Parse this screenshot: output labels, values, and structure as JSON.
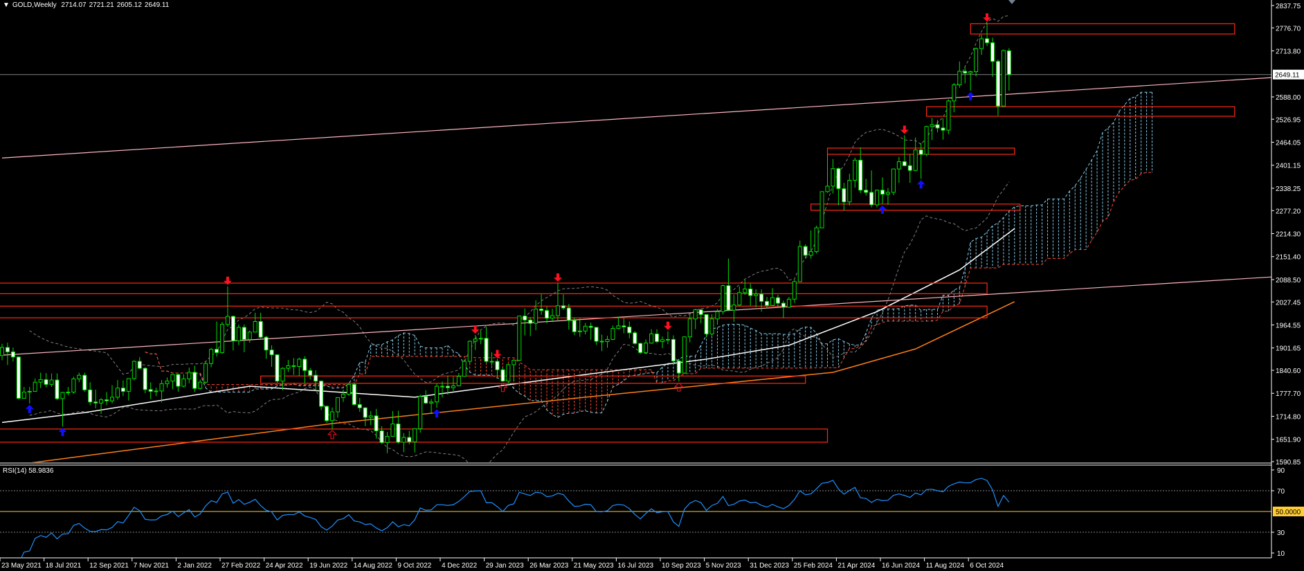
{
  "header": {
    "triangle_icon": "menu-triangle-down",
    "symbol_label": "GOLD,Weekly",
    "open": "2714.07",
    "high": "2721.21",
    "low": "2605.12",
    "close": "2649.11"
  },
  "price_axis": {
    "ticks": [
      "2837.75",
      "2776.70",
      "2713.80",
      "2588.00",
      "2526.95",
      "2464.05",
      "2401.15",
      "2338.25",
      "2277.20",
      "2214.30",
      "2151.40",
      "2088.50",
      "2027.45",
      "1964.55",
      "1901.65",
      "1840.60",
      "1777.70",
      "1714.80",
      "1651.90",
      "1590.85"
    ],
    "current_price": "2649.11"
  },
  "rsi_panel": {
    "label": "RSI(14) 58.9836",
    "ticks": [
      "90",
      "70",
      "30",
      "10"
    ],
    "level_label": "50.0000",
    "levels": [
      70,
      50,
      30
    ]
  },
  "time_axis": {
    "labels": [
      "23 May 2021",
      "18 Jul 2021",
      "12 Sep 2021",
      "7 Nov 2021",
      "2 Jan 2022",
      "27 Feb 2022",
      "24 Apr 2022",
      "19 Jun 2022",
      "14 Aug 2022",
      "9 Oct 2022",
      "4 Dec 2022",
      "29 Jan 2023",
      "26 Mar 2023",
      "21 May 2023",
      "16 Jul 2023",
      "10 Sep 2023",
      "5 Nov 2023",
      "31 Dec 2023",
      "25 Feb 2024",
      "21 Apr 2024",
      "16 Jun 2024",
      "11 Aug 2024",
      "6 Oct 2024"
    ],
    "label_every_bars": 8
  },
  "colors": {
    "background": "#000000",
    "candle_outline": "#00e000",
    "bear_fill": "#ffffff",
    "bull_fill": "#000000",
    "zone": "#ff2a12",
    "trendline": "#ffb6c1",
    "ma_fast": "#ffffff",
    "ma_slow": "#ff7f1a",
    "bollinger": "#808080",
    "cloud_bull": "#87ceeb",
    "cloud_bear": "#ff4a30",
    "rsi_line": "#1e90ff",
    "rsi_mid": "#ffcc33",
    "arrow_up": "#1010ff",
    "arrow_down": "#ff1020",
    "current_price_line": "#808080"
  },
  "chart_data": {
    "type": "candlestick",
    "symbol": "GOLD",
    "timeframe": "Weekly",
    "first_bar": "23 May 2021",
    "ylim": [
      1590.85,
      2837.75
    ],
    "candles": [
      [
        1881,
        1913,
        1868,
        1903
      ],
      [
        1903,
        1916,
        1855,
        1891
      ],
      [
        1891,
        1903,
        1865,
        1877
      ],
      [
        1877,
        1879,
        1761,
        1764
      ],
      [
        1764,
        1795,
        1771,
        1781
      ],
      [
        1781,
        1795,
        1750,
        1783
      ],
      [
        1783,
        1818,
        1784,
        1808
      ],
      [
        1808,
        1834,
        1792,
        1815
      ],
      [
        1815,
        1833,
        1794,
        1802
      ],
      [
        1802,
        1832,
        1795,
        1814
      ],
      [
        1814,
        1832,
        1759,
        1763
      ],
      [
        1763,
        1782,
        1687,
        1780
      ],
      [
        1780,
        1795,
        1772,
        1781
      ],
      [
        1781,
        1823,
        1776,
        1817
      ],
      [
        1817,
        1834,
        1808,
        1827
      ],
      [
        1827,
        1834,
        1782,
        1787
      ],
      [
        1787,
        1808,
        1745,
        1754
      ],
      [
        1754,
        1788,
        1737,
        1751
      ],
      [
        1751,
        1765,
        1721,
        1760
      ],
      [
        1760,
        1781,
        1746,
        1757
      ],
      [
        1757,
        1800,
        1750,
        1767
      ],
      [
        1767,
        1814,
        1760,
        1792
      ],
      [
        1792,
        1813,
        1770,
        1783
      ],
      [
        1783,
        1818,
        1758,
        1818
      ],
      [
        1818,
        1868,
        1813,
        1865
      ],
      [
        1865,
        1877,
        1844,
        1846
      ],
      [
        1846,
        1849,
        1778,
        1788
      ],
      [
        1788,
        1808,
        1762,
        1783
      ],
      [
        1783,
        1793,
        1770,
        1784
      ],
      [
        1784,
        1814,
        1753,
        1804
      ],
      [
        1804,
        1821,
        1793,
        1811
      ],
      [
        1811,
        1829,
        1789,
        1829
      ],
      [
        1829,
        1831,
        1782,
        1797
      ],
      [
        1797,
        1830,
        1794,
        1817
      ],
      [
        1817,
        1848,
        1805,
        1835
      ],
      [
        1835,
        1853,
        1781,
        1791
      ],
      [
        1791,
        1815,
        1788,
        1808
      ],
      [
        1808,
        1865,
        1806,
        1859
      ],
      [
        1859,
        1902,
        1849,
        1898
      ],
      [
        1898,
        1974,
        1878,
        1889
      ],
      [
        1889,
        1973,
        1886,
        1966
      ],
      [
        1966,
        2070,
        1959,
        1988
      ],
      [
        1988,
        1990,
        1895,
        1921
      ],
      [
        1921,
        1966,
        1910,
        1958
      ],
      [
        1958,
        1966,
        1890,
        1925
      ],
      [
        1925,
        1949,
        1916,
        1945
      ],
      [
        1945,
        1998,
        1944,
        1974
      ],
      [
        1974,
        1998,
        1928,
        1931
      ],
      [
        1931,
        1935,
        1872,
        1896
      ],
      [
        1896,
        1909,
        1850,
        1883
      ],
      [
        1883,
        1884,
        1807,
        1811
      ],
      [
        1811,
        1849,
        1786,
        1846
      ],
      [
        1846,
        1869,
        1836,
        1853
      ],
      [
        1853,
        1874,
        1828,
        1851
      ],
      [
        1851,
        1875,
        1825,
        1871
      ],
      [
        1871,
        1879,
        1805,
        1840
      ],
      [
        1840,
        1847,
        1816,
        1827
      ],
      [
        1827,
        1841,
        1785,
        1811
      ],
      [
        1811,
        1813,
        1732,
        1742
      ],
      [
        1742,
        1745,
        1697,
        1703
      ],
      [
        1703,
        1739,
        1680,
        1727
      ],
      [
        1727,
        1767,
        1711,
        1766
      ],
      [
        1766,
        1788,
        1754,
        1775
      ],
      [
        1775,
        1802,
        1771,
        1802
      ],
      [
        1802,
        1804,
        1745,
        1747
      ],
      [
        1747,
        1765,
        1727,
        1738
      ],
      [
        1738,
        1740,
        1688,
        1712
      ],
      [
        1712,
        1729,
        1691,
        1716
      ],
      [
        1716,
        1735,
        1654,
        1675
      ],
      [
        1675,
        1688,
        1639,
        1643
      ],
      [
        1643,
        1672,
        1614,
        1660
      ],
      [
        1660,
        1729,
        1659,
        1694
      ],
      [
        1694,
        1730,
        1640,
        1644
      ],
      [
        1644,
        1669,
        1617,
        1657
      ],
      [
        1657,
        1675,
        1638,
        1645
      ],
      [
        1645,
        1682,
        1616,
        1681
      ],
      [
        1681,
        1774,
        1670,
        1769
      ],
      [
        1769,
        1786,
        1748,
        1751
      ],
      [
        1751,
        1762,
        1721,
        1754
      ],
      [
        1754,
        1804,
        1738,
        1797
      ],
      [
        1797,
        1810,
        1766,
        1797
      ],
      [
        1797,
        1825,
        1774,
        1793
      ],
      [
        1793,
        1823,
        1784,
        1798
      ],
      [
        1798,
        1833,
        1797,
        1824
      ],
      [
        1824,
        1870,
        1824,
        1865
      ],
      [
        1865,
        1922,
        1858,
        1920
      ],
      [
        1920,
        1937,
        1896,
        1926
      ],
      [
        1926,
        1949,
        1912,
        1928
      ],
      [
        1928,
        1959,
        1861,
        1865
      ],
      [
        1865,
        1890,
        1853,
        1865
      ],
      [
        1865,
        1870,
        1819,
        1842
      ],
      [
        1842,
        1849,
        1809,
        1811
      ],
      [
        1811,
        1858,
        1804,
        1856
      ],
      [
        1856,
        1868,
        1810,
        1868
      ],
      [
        1868,
        1990,
        1866,
        1989
      ],
      [
        1989,
        2010,
        1936,
        1978
      ],
      [
        1978,
        1986,
        1934,
        1969
      ],
      [
        1969,
        2032,
        1950,
        2008
      ],
      [
        2008,
        2049,
        1992,
        2004
      ],
      [
        2004,
        2015,
        1969,
        1983
      ],
      [
        1983,
        2009,
        1975,
        1990
      ],
      [
        1990,
        2079,
        1975,
        2017
      ],
      [
        2017,
        2048,
        2006,
        2011
      ],
      [
        2011,
        2022,
        1952,
        1977
      ],
      [
        1977,
        1985,
        1937,
        1946
      ],
      [
        1946,
        1983,
        1932,
        1948
      ],
      [
        1948,
        1970,
        1939,
        1961
      ],
      [
        1961,
        1971,
        1924,
        1958
      ],
      [
        1958,
        1959,
        1910,
        1920
      ],
      [
        1920,
        1938,
        1893,
        1919
      ],
      [
        1919,
        1935,
        1902,
        1925
      ],
      [
        1925,
        1963,
        1923,
        1955
      ],
      [
        1955,
        1987,
        1953,
        1962
      ],
      [
        1962,
        1983,
        1942,
        1959
      ],
      [
        1959,
        1974,
        1928,
        1943
      ],
      [
        1943,
        1948,
        1911,
        1914
      ],
      [
        1914,
        1916,
        1885,
        1889
      ],
      [
        1889,
        1925,
        1887,
        1915
      ],
      [
        1915,
        1953,
        1913,
        1940
      ],
      [
        1940,
        1953,
        1915,
        1919
      ],
      [
        1919,
        1933,
        1901,
        1924
      ],
      [
        1924,
        1947,
        1912,
        1925
      ],
      [
        1925,
        1936,
        1857,
        1866
      ],
      [
        1866,
        1871,
        1810,
        1833
      ],
      [
        1833,
        1933,
        1832,
        1932
      ],
      [
        1932,
        1997,
        1917,
        1981
      ],
      [
        1981,
        2009,
        1953,
        2006
      ],
      [
        2006,
        2009,
        1969,
        1993
      ],
      [
        1993,
        1993,
        1931,
        1940
      ],
      [
        1940,
        1994,
        1935,
        1981
      ],
      [
        1981,
        2008,
        1965,
        2001
      ],
      [
        2001,
        2075,
        1993,
        2072
      ],
      [
        2072,
        2146,
        2009,
        2005
      ],
      [
        2005,
        2047,
        1973,
        2019
      ],
      [
        2019,
        2070,
        2016,
        2053
      ],
      [
        2053,
        2088,
        2047,
        2063
      ],
      [
        2063,
        2078,
        2017,
        2045
      ],
      [
        2045,
        2062,
        2013,
        2049
      ],
      [
        2049,
        2062,
        2001,
        2029
      ],
      [
        2029,
        2041,
        2010,
        2018
      ],
      [
        2018,
        2065,
        2017,
        2039
      ],
      [
        2039,
        2047,
        2014,
        2024
      ],
      [
        2024,
        2031,
        1984,
        2013
      ],
      [
        2013,
        2041,
        2011,
        2035
      ],
      [
        2035,
        2088,
        2025,
        2083
      ],
      [
        2083,
        2195,
        2083,
        2179
      ],
      [
        2179,
        2185,
        2146,
        2155
      ],
      [
        2155,
        2223,
        2146,
        2165
      ],
      [
        2165,
        2236,
        2160,
        2230
      ],
      [
        2230,
        2330,
        2229,
        2329
      ],
      [
        2329,
        2431,
        2326,
        2344
      ],
      [
        2344,
        2418,
        2324,
        2392
      ],
      [
        2392,
        2395,
        2291,
        2337
      ],
      [
        2337,
        2353,
        2277,
        2301
      ],
      [
        2301,
        2378,
        2291,
        2360
      ],
      [
        2360,
        2422,
        2340,
        2415
      ],
      [
        2415,
        2450,
        2325,
        2333
      ],
      [
        2333,
        2364,
        2318,
        2327
      ],
      [
        2327,
        2387,
        2286,
        2293
      ],
      [
        2293,
        2335,
        2286,
        2333
      ],
      [
        2333,
        2368,
        2295,
        2322
      ],
      [
        2322,
        2339,
        2293,
        2327
      ],
      [
        2327,
        2392,
        2319,
        2391
      ],
      [
        2391,
        2424,
        2353,
        2411
      ],
      [
        2411,
        2483,
        2398,
        2400
      ],
      [
        2400,
        2432,
        2353,
        2387
      ],
      [
        2387,
        2477,
        2385,
        2443
      ],
      [
        2443,
        2462,
        2364,
        2431
      ],
      [
        2431,
        2509,
        2426,
        2507
      ],
      [
        2507,
        2531,
        2470,
        2512
      ],
      [
        2512,
        2525,
        2491,
        2503
      ],
      [
        2503,
        2529,
        2471,
        2497
      ],
      [
        2497,
        2581,
        2486,
        2577
      ],
      [
        2577,
        2626,
        2546,
        2621
      ],
      [
        2621,
        2685,
        2613,
        2658
      ],
      [
        2658,
        2670,
        2625,
        2653
      ],
      [
        2653,
        2660,
        2605,
        2657
      ],
      [
        2657,
        2723,
        2644,
        2720
      ],
      [
        2720,
        2758,
        2703,
        2747
      ],
      [
        2747,
        2790,
        2727,
        2736
      ],
      [
        2736,
        2750,
        2643,
        2685
      ],
      [
        2685,
        2690,
        2537,
        2563
      ],
      [
        2563,
        2717,
        2562,
        2715
      ],
      [
        2714.07,
        2721.21,
        2605.12,
        2649.11
      ]
    ],
    "zones": [
      {
        "from_bar": 176,
        "to_bar": 224,
        "top": 2788,
        "bottom": 2760
      },
      {
        "from_bar": 168,
        "to_bar": 224,
        "top": 2561,
        "bottom": 2535
      },
      {
        "from_bar": 150,
        "to_bar": 184,
        "top": 2448,
        "bottom": 2431
      },
      {
        "from_bar": 147,
        "to_bar": 185,
        "top": 2295,
        "bottom": 2278
      },
      {
        "from_bar": -1,
        "to_bar": 179,
        "top": 2079,
        "bottom": 2050
      },
      {
        "from_bar": -1,
        "to_bar": 179,
        "top": 2016,
        "bottom": 1984
      },
      {
        "from_bar": 47,
        "to_bar": 146,
        "top": 1825,
        "bottom": 1805
      },
      {
        "from_bar": -1,
        "to_bar": 150,
        "top": 1680,
        "bottom": 1644
      }
    ],
    "trendlines": [
      {
        "from": [
          0,
          2421
        ],
        "to": [
          231,
          2641
        ]
      },
      {
        "from": [
          0,
          1882
        ],
        "to": [
          231,
          2096
        ]
      }
    ],
    "ma_fast": [
      [
        0,
        1698
      ],
      [
        15,
        1725
      ],
      [
        45,
        1797
      ],
      [
        75,
        1767
      ],
      [
        106,
        1829
      ],
      [
        128,
        1871
      ],
      [
        143,
        1909
      ],
      [
        159,
        2001
      ],
      [
        174,
        2115
      ],
      [
        184,
        2228
      ]
    ],
    "ma_slow": [
      [
        4,
        1585
      ],
      [
        60,
        1695
      ],
      [
        106,
        1767
      ],
      [
        151,
        1835
      ],
      [
        166,
        1899
      ],
      [
        184,
        2028
      ]
    ],
    "arrows": [
      {
        "bar": 41,
        "dir": "down"
      },
      {
        "bar": 86,
        "dir": "down"
      },
      {
        "bar": 90,
        "dir": "down"
      },
      {
        "bar": 101,
        "dir": "down"
      },
      {
        "bar": 121,
        "dir": "down"
      },
      {
        "bar": 164,
        "dir": "down"
      },
      {
        "bar": 179,
        "dir": "down"
      },
      {
        "bar": 5,
        "dir": "up"
      },
      {
        "bar": 11,
        "dir": "up"
      },
      {
        "bar": 79,
        "dir": "up"
      },
      {
        "bar": 160,
        "dir": "up"
      },
      {
        "bar": 167,
        "dir": "up"
      },
      {
        "bar": 176,
        "dir": "up"
      },
      {
        "bar": 60,
        "dir": "up-hollow"
      },
      {
        "bar": 91,
        "dir": "up-hollow"
      },
      {
        "bar": 123,
        "dir": "up-hollow"
      }
    ]
  }
}
